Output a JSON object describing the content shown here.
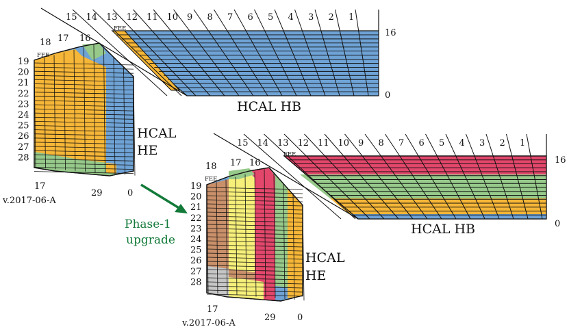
{
  "colors": {
    "blue": "#6fa3d6",
    "orange": "#f6b637",
    "green": "#96c98a",
    "yellow": "#f6f07a",
    "red": "#e3476b",
    "brown": "#c9906a",
    "gray": "#c6c6c6",
    "arrow": "#137a3a"
  },
  "top": {
    "hb_tower_labels": [
      "15",
      "14",
      "13",
      "12",
      "11",
      "10",
      "9",
      "8",
      "7",
      "6",
      "5",
      "4",
      "3",
      "2",
      "1"
    ],
    "hb_depth_top": "16",
    "hb_depth_bottom": "0",
    "hb_fee": "FEE",
    "hb_title": "HCAL HB",
    "he_tower_labels_top": [
      "18",
      "17",
      "16"
    ],
    "he_fee": "FEE",
    "he_row_labels": [
      "19",
      "20",
      "21",
      "22",
      "23",
      "24",
      "25",
      "26",
      "27",
      "28"
    ],
    "he_bottom_labels": [
      "17",
      "29",
      "0"
    ],
    "he_title_1": "HCAL",
    "he_title_2": "HE",
    "version": "v.2017-06-A"
  },
  "arrow": {
    "line1": "Phase-1",
    "line2": "upgrade"
  },
  "bottom": {
    "hb_tower_labels": [
      "15",
      "14",
      "13",
      "12",
      "11",
      "10",
      "9",
      "8",
      "7",
      "6",
      "5",
      "4",
      "3",
      "2",
      "1"
    ],
    "hb_depth_top": "16",
    "hb_depth_bottom": "0",
    "hb_fee": "FEE",
    "hb_title": "HCAL HB",
    "he_tower_labels_top": [
      "18",
      "17",
      "16"
    ],
    "he_fee": "FEE",
    "he_row_labels": [
      "19",
      "20",
      "21",
      "22",
      "23",
      "24",
      "25",
      "26",
      "27",
      "28"
    ],
    "he_bottom_labels": [
      "17",
      "29",
      "0"
    ],
    "he_title_1": "HCAL",
    "he_title_2": "HE",
    "version": "v.2017-06-A"
  }
}
